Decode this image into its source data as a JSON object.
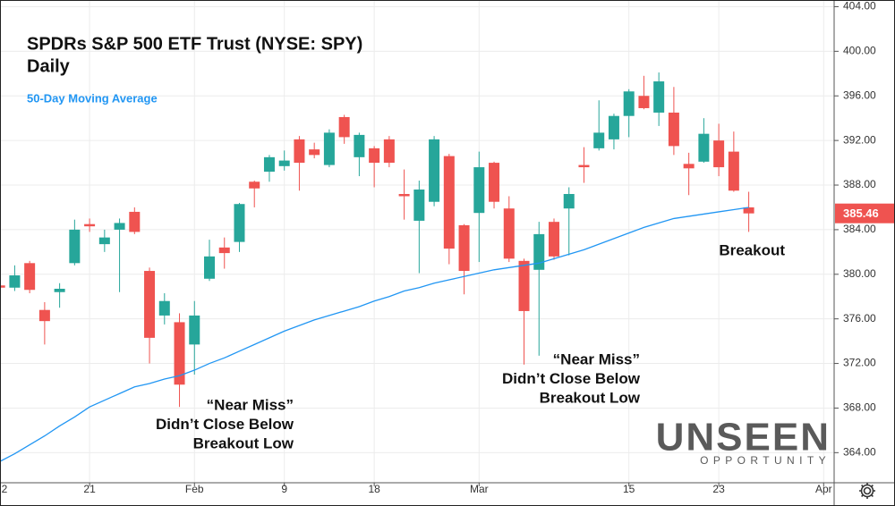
{
  "chart_data": {
    "type": "candlestick",
    "title": "SPDRs S&P 500 ETF Trust (NYSE: SPY)",
    "subtitle": "Daily",
    "x": [
      0,
      1,
      2,
      3,
      4,
      5,
      6,
      7,
      8,
      9,
      10,
      11,
      12,
      13,
      14,
      15,
      16,
      17,
      18,
      19,
      20,
      21,
      22,
      23,
      24,
      25,
      26,
      27,
      28,
      29,
      30,
      31,
      32,
      33,
      34,
      35,
      36,
      37,
      38,
      39,
      40,
      41,
      42,
      43,
      44,
      45,
      46,
      47,
      48,
      49,
      50
    ],
    "xlim": [
      0.02,
      55.7
    ],
    "xticks": [
      {
        "value": 0,
        "label": "2"
      },
      {
        "value": 6,
        "label": "21"
      },
      {
        "value": 13,
        "label": "Feb"
      },
      {
        "value": 19,
        "label": "9"
      },
      {
        "value": 25,
        "label": "18"
      },
      {
        "value": 32,
        "label": "Mar"
      },
      {
        "value": 42,
        "label": "15"
      },
      {
        "value": 48,
        "label": "23"
      },
      {
        "value": 55,
        "label": "Apr"
      }
    ],
    "ylim": [
      361.3,
      404.6
    ],
    "yticks": [
      {
        "value": 364,
        "label": "364.00"
      },
      {
        "value": 368,
        "label": "368.00"
      },
      {
        "value": 372,
        "label": "372.00"
      },
      {
        "value": 376,
        "label": "376.00"
      },
      {
        "value": 380,
        "label": "380.00"
      },
      {
        "value": 384,
        "label": "384.00"
      },
      {
        "value": 388,
        "label": "388.00"
      },
      {
        "value": 392,
        "label": "392.00"
      },
      {
        "value": 396,
        "label": "396.00"
      },
      {
        "value": 400,
        "label": "400.00"
      },
      {
        "value": 404,
        "label": "404.00"
      }
    ],
    "grid": true,
    "series": [
      {
        "type": "candlestick",
        "up_color": "#26a69a",
        "down_color": "#ef5350",
        "open": [
          379.0,
          378.8,
          381.0,
          376.8,
          378.4,
          381.0,
          384.5,
          382.7,
          384.0,
          385.6,
          380.3,
          376.3,
          375.7,
          373.7,
          379.6,
          382.4,
          382.9,
          388.3,
          389.2,
          389.7,
          392.1,
          391.2,
          389.8,
          394.1,
          390.5,
          391.3,
          392.1,
          387.2,
          384.8,
          386.5,
          390.6,
          384.4,
          385.5,
          390.0,
          385.9,
          381.2,
          380.4,
          384.7,
          385.9,
          389.8,
          391.3,
          392.1,
          394.2,
          396.0,
          394.5,
          394.5,
          389.9,
          390.1,
          392.0,
          391.0,
          386.0
        ],
        "high": [
          379.3,
          380.8,
          381.2,
          377.5,
          379.2,
          384.9,
          385.0,
          384.0,
          385.0,
          386.0,
          380.6,
          378.3,
          376.5,
          377.6,
          383.1,
          383.3,
          386.4,
          388.4,
          390.7,
          391.1,
          392.4,
          391.8,
          393.0,
          394.3,
          392.7,
          391.5,
          392.4,
          389.4,
          388.4,
          392.4,
          390.8,
          384.5,
          391.0,
          390.1,
          387.0,
          381.4,
          384.7,
          385.0,
          387.8,
          391.4,
          395.6,
          394.4,
          396.6,
          397.8,
          398.1,
          396.8,
          390.9,
          394.0,
          393.5,
          392.8,
          387.4
        ],
        "low": [
          378.5,
          378.5,
          378.3,
          373.7,
          377.0,
          380.8,
          383.8,
          382.0,
          378.4,
          383.6,
          372.0,
          375.5,
          368.1,
          371.0,
          379.4,
          380.5,
          382.0,
          386.0,
          388.3,
          389.3,
          387.5,
          390.4,
          389.6,
          391.7,
          388.8,
          387.8,
          389.6,
          384.9,
          380.1,
          386.1,
          380.9,
          378.2,
          381.1,
          385.9,
          381.1,
          371.9,
          372.7,
          381.3,
          381.7,
          388.2,
          391.1,
          391.2,
          392.3,
          394.8,
          393.3,
          390.7,
          387.1,
          390.0,
          388.8,
          387.4,
          383.8
        ],
        "close": [
          378.8,
          379.9,
          378.6,
          375.8,
          378.7,
          384.0,
          384.3,
          383.3,
          384.6,
          383.8,
          374.3,
          377.6,
          370.1,
          376.3,
          381.6,
          381.9,
          386.3,
          387.7,
          390.5,
          390.2,
          390.0,
          390.7,
          392.7,
          392.3,
          392.5,
          390.0,
          390.0,
          387.0,
          387.6,
          392.1,
          382.3,
          380.3,
          389.6,
          386.5,
          381.4,
          376.7,
          383.6,
          381.6,
          387.2,
          389.6,
          392.7,
          394.2,
          396.4,
          394.9,
          397.3,
          391.5,
          389.5,
          392.6,
          389.6,
          387.5,
          385.46
        ]
      },
      {
        "type": "line",
        "name": "50-Day Moving Average",
        "color": "#2196f3",
        "values": [
          363.2,
          363.9,
          364.7,
          365.5,
          366.4,
          367.2,
          368.1,
          368.7,
          369.3,
          369.9,
          370.2,
          370.6,
          370.9,
          371.4,
          372.0,
          372.5,
          373.1,
          373.7,
          374.3,
          374.9,
          375.4,
          375.9,
          376.3,
          376.7,
          377.1,
          377.6,
          378.0,
          378.5,
          378.8,
          379.2,
          379.5,
          379.8,
          380.1,
          380.4,
          380.6,
          380.8,
          381.0,
          381.4,
          381.8,
          382.2,
          382.7,
          383.2,
          383.7,
          384.2,
          384.6,
          385.0,
          385.2,
          385.4,
          385.6,
          385.8,
          386.0
        ]
      }
    ],
    "annotations": [
      {
        "lines": [
          "“Near Miss”",
          "Didn’t Close Below",
          "Breakout Low"
        ]
      },
      {
        "lines": [
          "“Near Miss”",
          "Didn’t Close Below",
          "Breakout Low"
        ]
      },
      {
        "lines": [
          "Breakout"
        ]
      }
    ]
  },
  "branding": {
    "logo": "UNSEEN",
    "tagline": "OPPORTUNITY"
  }
}
